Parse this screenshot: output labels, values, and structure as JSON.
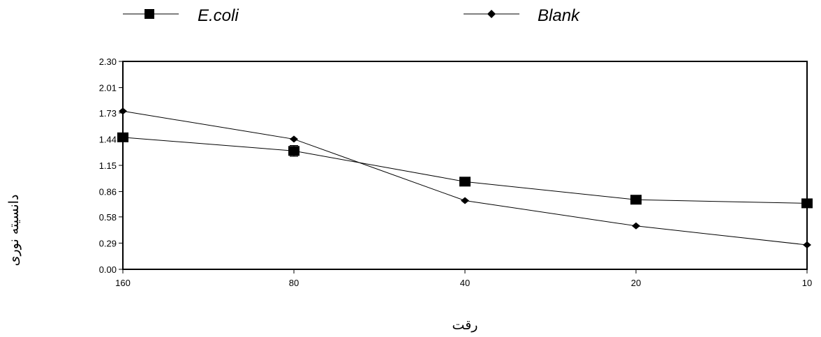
{
  "chart_data": {
    "type": "line",
    "title": "",
    "xlabel": "رقت",
    "ylabel": "دانسیته نوری",
    "categories": [
      "160",
      "80",
      "40",
      "20",
      "10"
    ],
    "ylim": [
      0.0,
      2.3
    ],
    "yticks": [
      "0.00",
      "0.29",
      "0.58",
      "0.86",
      "1.15",
      "1.44",
      "1.73",
      "2.01",
      "2.30"
    ],
    "grid": false,
    "legend_position": "top",
    "series": [
      {
        "name": "E.coli",
        "marker": "square",
        "values": [
          1.46,
          1.31,
          0.97,
          0.77,
          0.73
        ],
        "errors": [
          0.02,
          0.06,
          0.02,
          0.02,
          0.02
        ]
      },
      {
        "name": "Blank",
        "marker": "diamond",
        "values": [
          1.75,
          1.44,
          0.76,
          0.48,
          0.27
        ]
      }
    ]
  }
}
